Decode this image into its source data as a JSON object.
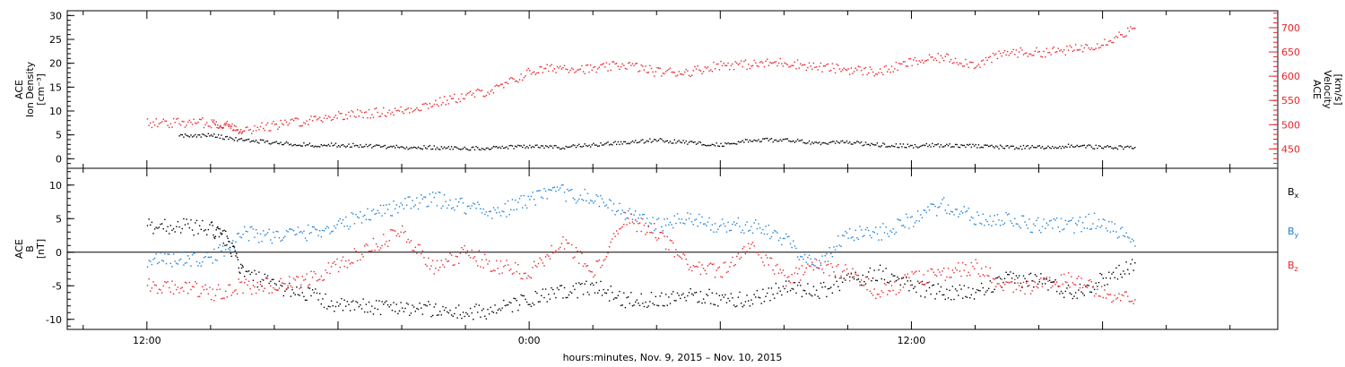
{
  "chart_data": [
    {
      "type": "scatter",
      "ylabel_lines": [
        "ACE",
        "Ion Density",
        "[cm⁻³]"
      ],
      "y2label_lines": [
        "ACE",
        "Velocity",
        "[km/s]"
      ],
      "ylim": [
        -2,
        31
      ],
      "y2lim": [
        410,
        735
      ],
      "yticks": [
        0,
        5,
        10,
        15,
        20,
        25,
        30
      ],
      "y2ticks": [
        450,
        500,
        550,
        600,
        650,
        700
      ],
      "series": [
        {
          "color": "#000000",
          "axis": "left",
          "points": [
            [
              2,
              5
            ],
            [
              4,
              5
            ],
            [
              6,
              4
            ],
            [
              8,
              3.5
            ],
            [
              10,
              3
            ],
            [
              12,
              3
            ],
            [
              14,
              2.8
            ],
            [
              16,
              2.5
            ],
            [
              18,
              2.5
            ],
            [
              20,
              2.2
            ],
            [
              22,
              2.5
            ],
            [
              24,
              2.8
            ],
            [
              26,
              2.5
            ],
            [
              28,
              3
            ],
            [
              30,
              3.5
            ],
            [
              32,
              4
            ],
            [
              34,
              3.5
            ],
            [
              36,
              3
            ],
            [
              38,
              4
            ],
            [
              40,
              4
            ],
            [
              42,
              3.5
            ],
            [
              44,
              3.5
            ],
            [
              46,
              3
            ],
            [
              48,
              2.8
            ],
            [
              50,
              3
            ],
            [
              52,
              2.8
            ],
            [
              54,
              2.5
            ],
            [
              56,
              2.5
            ],
            [
              58,
              2.8
            ],
            [
              60,
              2.5
            ],
            [
              62,
              2.5
            ]
          ]
        },
        {
          "color": "#e8232a",
          "axis": "right",
          "points": [
            [
              0,
              505
            ],
            [
              2,
              505
            ],
            [
              4,
              505
            ],
            [
              5,
              500
            ],
            [
              6,
              490
            ],
            [
              8,
              500
            ],
            [
              10,
              510
            ],
            [
              12,
              520
            ],
            [
              14,
              525
            ],
            [
              16,
              530
            ],
            [
              18,
              545
            ],
            [
              20,
              560
            ],
            [
              22,
              575
            ],
            [
              24,
              610
            ],
            [
              26,
              620
            ],
            [
              28,
              615
            ],
            [
              30,
              625
            ],
            [
              32,
              610
            ],
            [
              34,
              610
            ],
            [
              36,
              625
            ],
            [
              38,
              625
            ],
            [
              40,
              630
            ],
            [
              42,
              620
            ],
            [
              44,
              615
            ],
            [
              46,
              610
            ],
            [
              48,
              630
            ],
            [
              50,
              640
            ],
            [
              52,
              625
            ],
            [
              54,
              650
            ],
            [
              56,
              650
            ],
            [
              58,
              655
            ],
            [
              60,
              670
            ],
            [
              62,
              700
            ]
          ]
        }
      ]
    },
    {
      "type": "scatter",
      "ylabel_lines": [
        "ACE",
        "B",
        "[nT]"
      ],
      "ylim": [
        -11.5,
        12.5
      ],
      "yticks": [
        -10,
        -5,
        0,
        5,
        10
      ],
      "zero_line": true,
      "series": [
        {
          "name": "B",
          "sub": "x",
          "color": "#000000",
          "points": [
            [
              0,
              4
            ],
            [
              2,
              4
            ],
            [
              4,
              3.5
            ],
            [
              5,
              2
            ],
            [
              6,
              -3
            ],
            [
              8,
              -5
            ],
            [
              10,
              -6
            ],
            [
              12,
              -8
            ],
            [
              14,
              -8
            ],
            [
              16,
              -8
            ],
            [
              18,
              -8.5
            ],
            [
              20,
              -9
            ],
            [
              22,
              -8.5
            ],
            [
              24,
              -7
            ],
            [
              26,
              -6
            ],
            [
              28,
              -5
            ],
            [
              30,
              -7
            ],
            [
              32,
              -7
            ],
            [
              34,
              -6
            ],
            [
              36,
              -7
            ],
            [
              38,
              -7
            ],
            [
              40,
              -5
            ],
            [
              42,
              -6
            ],
            [
              44,
              -4
            ],
            [
              46,
              -3
            ],
            [
              48,
              -5
            ],
            [
              50,
              -6
            ],
            [
              52,
              -6
            ],
            [
              54,
              -4
            ],
            [
              56,
              -4
            ],
            [
              58,
              -6
            ],
            [
              60,
              -4
            ],
            [
              62,
              -1.5
            ]
          ]
        },
        {
          "name": "B",
          "sub": "y",
          "color": "#1c7fd6",
          "points": [
            [
              0,
              -1
            ],
            [
              2,
              -1
            ],
            [
              4,
              -1
            ],
            [
              6,
              3
            ],
            [
              8,
              2.5
            ],
            [
              10,
              3
            ],
            [
              12,
              4
            ],
            [
              14,
              6
            ],
            [
              16,
              7
            ],
            [
              18,
              8
            ],
            [
              20,
              7
            ],
            [
              22,
              6
            ],
            [
              24,
              8
            ],
            [
              26,
              9
            ],
            [
              28,
              8
            ],
            [
              30,
              6
            ],
            [
              32,
              4
            ],
            [
              34,
              5
            ],
            [
              36,
              4
            ],
            [
              38,
              4
            ],
            [
              40,
              2
            ],
            [
              42,
              -2
            ],
            [
              44,
              3
            ],
            [
              46,
              3
            ],
            [
              48,
              5
            ],
            [
              50,
              7
            ],
            [
              52,
              5
            ],
            [
              54,
              5
            ],
            [
              56,
              4
            ],
            [
              58,
              4
            ],
            [
              60,
              5
            ],
            [
              62,
              1
            ]
          ]
        },
        {
          "name": "B",
          "sub": "z",
          "color": "#e8232a",
          "points": [
            [
              0,
              -5
            ],
            [
              2,
              -5
            ],
            [
              4,
              -6
            ],
            [
              6,
              -5
            ],
            [
              8,
              -5
            ],
            [
              10,
              -4
            ],
            [
              12,
              -2
            ],
            [
              14,
              1
            ],
            [
              16,
              3
            ],
            [
              18,
              -2
            ],
            [
              20,
              0
            ],
            [
              22,
              -2
            ],
            [
              24,
              -3
            ],
            [
              26,
              2
            ],
            [
              28,
              -3
            ],
            [
              30,
              5
            ],
            [
              32,
              3
            ],
            [
              34,
              -2
            ],
            [
              36,
              -3
            ],
            [
              38,
              1
            ],
            [
              40,
              -4
            ],
            [
              42,
              -2
            ],
            [
              44,
              -3
            ],
            [
              46,
              -6
            ],
            [
              48,
              -4
            ],
            [
              50,
              -3
            ],
            [
              52,
              -2
            ],
            [
              54,
              -5
            ],
            [
              56,
              -5
            ],
            [
              58,
              -4
            ],
            [
              60,
              -6
            ],
            [
              62,
              -7
            ]
          ]
        }
      ]
    }
  ],
  "x_axis": {
    "range_hours": [
      -5,
      71
    ],
    "tick_labels": [
      {
        "hour": 0,
        "label": "12:00"
      },
      {
        "hour": 24,
        "label": "0:00"
      },
      {
        "hour": 48,
        "label": "12:00"
      }
    ],
    "minor_tick_step_hours": 4,
    "title": "hours:minutes, Nov.  9, 2015 – Nov. 10, 2015"
  }
}
